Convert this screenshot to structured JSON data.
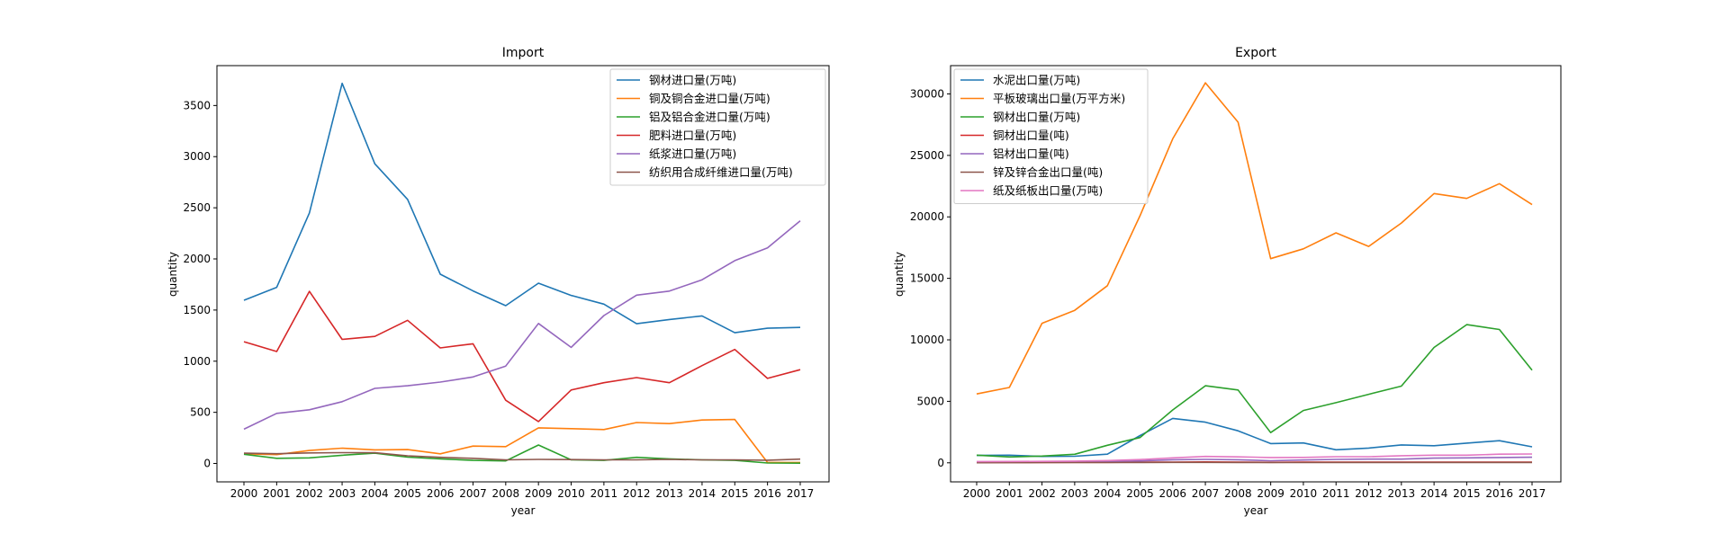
{
  "colors": [
    "#1f77b4",
    "#ff7f0e",
    "#2ca02c",
    "#d62728",
    "#9467bd",
    "#8c564b",
    "#e377c2"
  ],
  "chart_data": [
    {
      "type": "line",
      "title": "Import",
      "xlabel": "year",
      "ylabel": "quantity",
      "x": [
        "2000",
        "2001",
        "2002",
        "2003",
        "2004",
        "2005",
        "2006",
        "2007",
        "2008",
        "2009",
        "2010",
        "2011",
        "2012",
        "2013",
        "2014",
        "2015",
        "2016",
        "2017"
      ],
      "ylim": [
        -180,
        3890
      ],
      "yticks": [
        0,
        500,
        1000,
        1500,
        2000,
        2500,
        3000,
        3500
      ],
      "legend": "top-right",
      "series": [
        {
          "name": "钢材进口量(万吨)",
          "values": [
            1596,
            1722,
            2449,
            3717,
            2930,
            2582,
            1851,
            1687,
            1543,
            1763,
            1643,
            1558,
            1366,
            1408,
            1443,
            1278,
            1322,
            1330
          ]
        },
        {
          "name": "铜及铜合金进口量(万吨)",
          "values": [
            94,
            86,
            127,
            150,
            133,
            136,
            94,
            170,
            165,
            348,
            340,
            332,
            400,
            390,
            425,
            430,
            10,
            10
          ]
        },
        {
          "name": "铝及铝合金进口量(万吨)",
          "values": [
            90,
            50,
            55,
            80,
            100,
            62,
            45,
            30,
            25,
            180,
            35,
            30,
            60,
            45,
            35,
            30,
            5,
            3
          ]
        },
        {
          "name": "肥料进口量(万吨)",
          "values": [
            1190,
            1095,
            1683,
            1213,
            1242,
            1400,
            1130,
            1170,
            618,
            410,
            718,
            790,
            840,
            790,
            957,
            1115,
            832,
            917
          ]
        },
        {
          "name": "纸浆进口量(万吨)",
          "values": [
            335,
            490,
            525,
            604,
            734,
            760,
            796,
            846,
            952,
            1369,
            1135,
            1446,
            1646,
            1685,
            1796,
            1983,
            2108,
            2373
          ]
        },
        {
          "name": "纺织用合成纤维进口量(万吨)",
          "values": [
            100,
            95,
            103,
            106,
            105,
            75,
            60,
            50,
            35,
            40,
            38,
            35,
            35,
            40,
            35,
            35,
            32,
            42
          ]
        }
      ]
    },
    {
      "type": "line",
      "title": "Export",
      "xlabel": "year",
      "ylabel": "quantity",
      "x": [
        "2000",
        "2001",
        "2002",
        "2003",
        "2004",
        "2005",
        "2006",
        "2007",
        "2008",
        "2009",
        "2010",
        "2011",
        "2012",
        "2013",
        "2014",
        "2015",
        "2016",
        "2017"
      ],
      "ylim": [
        -1550,
        32300
      ],
      "yticks": [
        0,
        5000,
        10000,
        15000,
        20000,
        25000,
        30000
      ],
      "legend": "top-left",
      "series": [
        {
          "name": "水泥出口量(万吨)",
          "values": [
            600,
            620,
            518,
            530,
            704,
            2213,
            3613,
            3301,
            2604,
            1561,
            1618,
            1061,
            1200,
            1454,
            1392,
            1600,
            1800,
            1300
          ]
        },
        {
          "name": "平板玻璃出口量(万平方米)",
          "values": [
            5600,
            6130,
            11350,
            12400,
            14400,
            20100,
            26350,
            30900,
            27700,
            16600,
            17400,
            18700,
            17600,
            19500,
            21900,
            21500,
            22700,
            21000
          ]
        },
        {
          "name": "钢材出口量(万吨)",
          "values": [
            620,
            474,
            545,
            696,
            1423,
            2052,
            4301,
            6265,
            5923,
            2460,
            4256,
            4888,
            5573,
            6234,
            9378,
            11240,
            10843,
            7541
          ]
        },
        {
          "name": "铜材出口量(吨)",
          "values": [
            20,
            25,
            30,
            35,
            40,
            50,
            60,
            70,
            60,
            40,
            50,
            60,
            60,
            60,
            60,
            60,
            60,
            60
          ]
        },
        {
          "name": "铝材出口量(吨)",
          "values": [
            50,
            60,
            80,
            90,
            100,
            150,
            250,
            280,
            250,
            170,
            230,
            280,
            300,
            300,
            380,
            400,
            430,
            450
          ]
        },
        {
          "name": "锌及锌合金出口量(吨)",
          "values": [
            10,
            15,
            20,
            20,
            25,
            30,
            40,
            40,
            30,
            20,
            25,
            30,
            30,
            30,
            30,
            30,
            30,
            30
          ]
        },
        {
          "name": "纸及纸板出口量(万吨)",
          "values": [
            100,
            110,
            120,
            140,
            180,
            260,
            400,
            520,
            480,
            430,
            440,
            500,
            500,
            580,
            620,
            620,
            700,
            720
          ]
        }
      ]
    }
  ]
}
